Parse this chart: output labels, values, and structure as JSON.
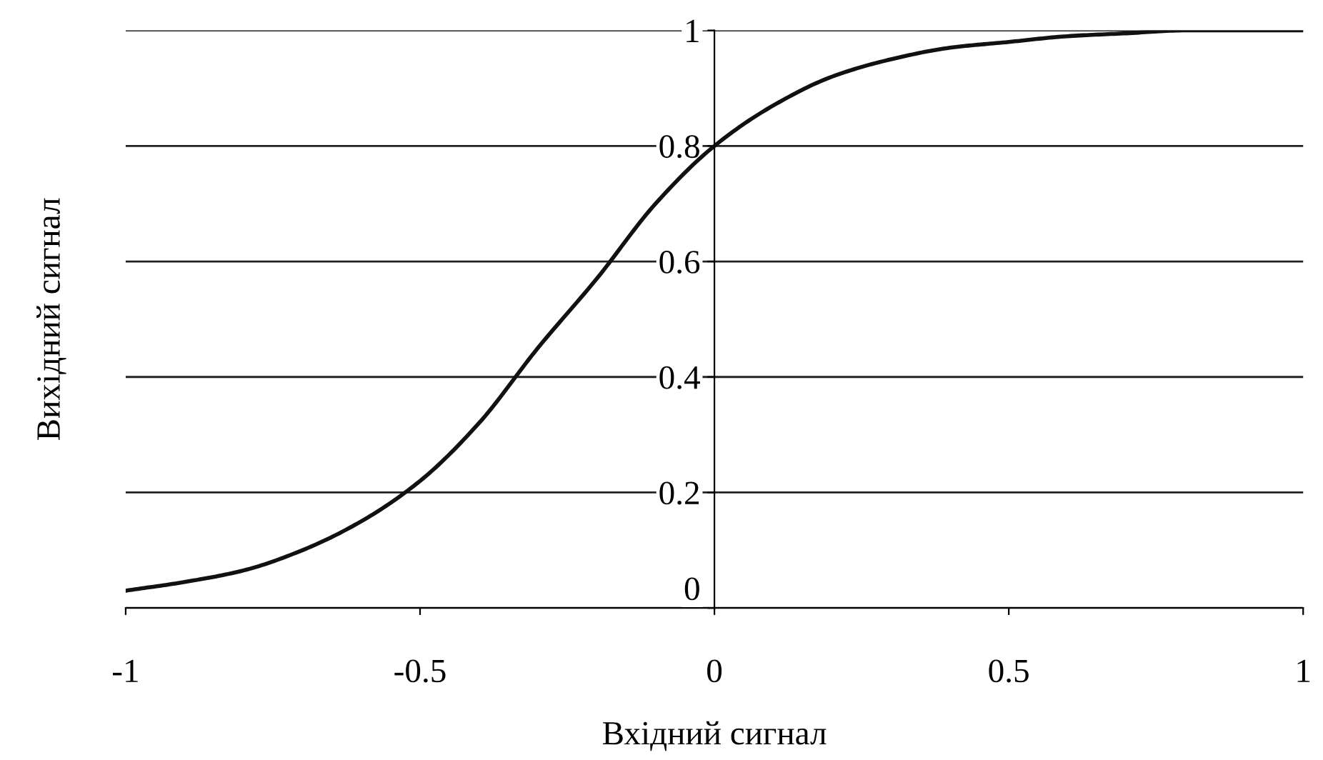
{
  "chart_data": {
    "type": "line",
    "xlabel": "Вхідний сигнал",
    "ylabel": "Вихідний сигнал",
    "x": [
      -1,
      -0.9,
      -0.8,
      -0.7,
      -0.6,
      -0.5,
      -0.4,
      -0.3,
      -0.2,
      -0.1,
      0,
      0.1,
      0.2,
      0.3,
      0.4,
      0.5,
      0.6,
      0.7,
      0.8,
      0.9,
      1
    ],
    "series": [
      {
        "color": "#111111",
        "values": [
          0.03,
          0.045,
          0.065,
          0.1,
          0.15,
          0.22,
          0.32,
          0.45,
          0.57,
          0.7,
          0.8,
          0.87,
          0.92,
          0.95,
          0.97,
          0.98,
          0.99,
          0.995,
          1.0,
          1.0,
          1.0
        ]
      }
    ],
    "xlim": [
      -1,
      1
    ],
    "ylim": [
      0,
      1
    ],
    "xticks": [
      -1,
      -0.5,
      0,
      0.5,
      1
    ],
    "yticks": [
      0,
      0.2,
      0.4,
      0.6,
      0.8,
      1
    ],
    "grid": "y",
    "marker": "none",
    "line_style": "solid",
    "legend": false
  }
}
